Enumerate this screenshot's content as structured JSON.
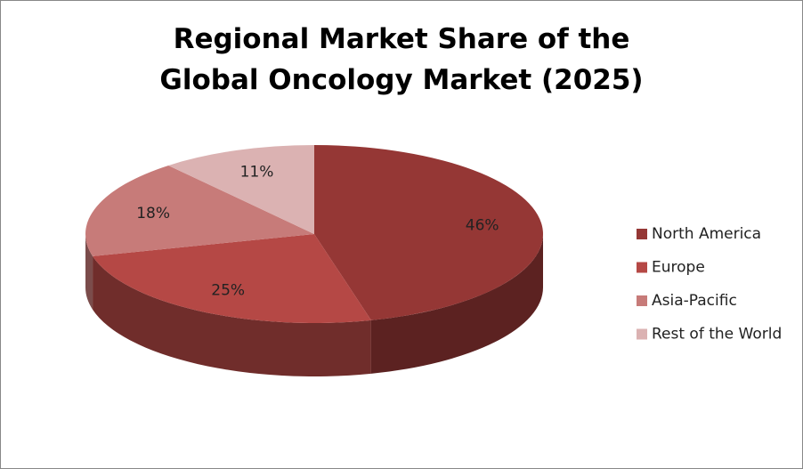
{
  "chart_data": {
    "type": "pie",
    "title": "Regional Market Share of the Global Oncology Market (2025)",
    "categories": [
      "North America",
      "Europe",
      "Asia-Pacific",
      "Rest of the World"
    ],
    "values": [
      46,
      25,
      18,
      11
    ],
    "value_labels": [
      "46%",
      "25%",
      "18%",
      "11%"
    ],
    "colors": [
      "#953735",
      "#b54845",
      "#c77b79",
      "#dbb2b2"
    ],
    "legend": "right"
  }
}
